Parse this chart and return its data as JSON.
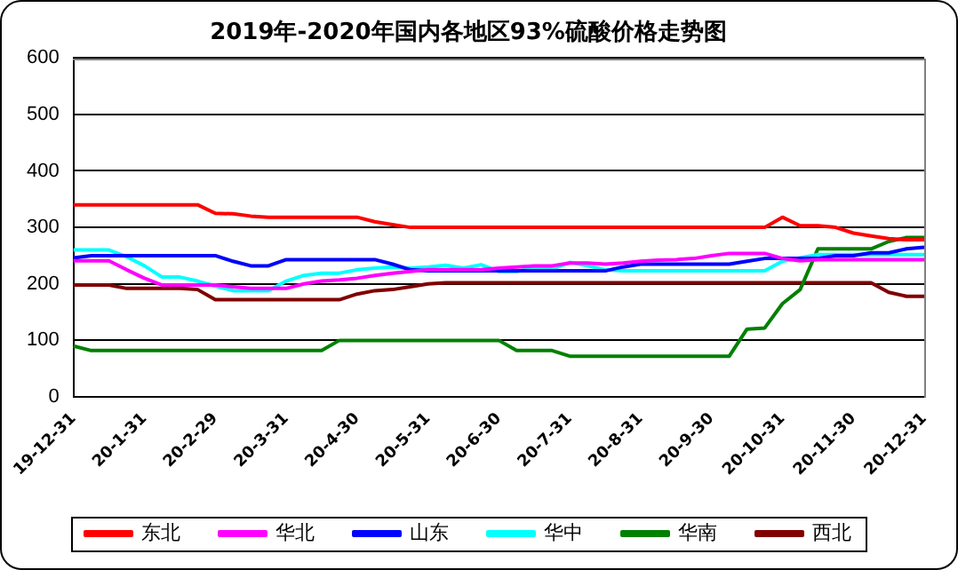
{
  "chart_data": {
    "type": "line",
    "title": "2019年-2020年国内各地区93%硫酸价格走势图",
    "categories": [
      "19-12-31",
      null,
      null,
      null,
      "20-1-31",
      null,
      null,
      null,
      "20-2-29",
      null,
      null,
      null,
      "20-3-31",
      null,
      null,
      null,
      "20-4-30",
      null,
      null,
      null,
      "20-5-31",
      null,
      null,
      null,
      "20-6-30",
      null,
      null,
      null,
      "20-7-31",
      null,
      null,
      null,
      "20-8-31",
      null,
      null,
      null,
      "20-9-30",
      null,
      null,
      null,
      "20-10-31",
      null,
      null,
      null,
      "20-11-30",
      null,
      null,
      null,
      "20-12-31"
    ],
    "series": [
      {
        "name": "东北",
        "color": "#ff0000",
        "values": [
          340,
          340,
          340,
          340,
          340,
          340,
          340,
          340,
          325,
          324,
          320,
          318,
          318,
          318,
          318,
          318,
          318,
          310,
          305,
          300,
          300,
          300,
          300,
          300,
          300,
          300,
          300,
          300,
          300,
          300,
          300,
          300,
          300,
          300,
          300,
          300,
          300,
          300,
          300,
          300,
          318,
          303,
          303,
          300,
          290,
          285,
          280,
          278,
          278
        ]
      },
      {
        "name": "华北",
        "color": "#ff00ff",
        "values": [
          241,
          241,
          241,
          225,
          210,
          198,
          198,
          198,
          198,
          195,
          192,
          192,
          192,
          200,
          205,
          207,
          210,
          215,
          219,
          222,
          225,
          225,
          225,
          225,
          228,
          230,
          232,
          232,
          237,
          237,
          235,
          237,
          240,
          242,
          243,
          245,
          250,
          254,
          254,
          254,
          245,
          241,
          243,
          243,
          243,
          243,
          243,
          243,
          243
        ]
      },
      {
        "name": "山东",
        "color": "#0000ff",
        "values": [
          246,
          250,
          250,
          250,
          250,
          250,
          250,
          250,
          250,
          240,
          232,
          232,
          243,
          243,
          243,
          243,
          243,
          243,
          235,
          225,
          223,
          223,
          223,
          223,
          223,
          223,
          223,
          223,
          223,
          223,
          223,
          230,
          235,
          235,
          235,
          235,
          235,
          235,
          240,
          245,
          245,
          245,
          245,
          250,
          250,
          255,
          255,
          262,
          265
        ]
      },
      {
        "name": "华中",
        "color": "#00ffff",
        "values": [
          260,
          260,
          260,
          248,
          232,
          212,
          212,
          205,
          196,
          188,
          188,
          188,
          205,
          215,
          219,
          219,
          225,
          228,
          230,
          228,
          230,
          233,
          228,
          234,
          222,
          222,
          228,
          226,
          238,
          232,
          225,
          223,
          223,
          223,
          223,
          223,
          223,
          223,
          223,
          223,
          240,
          246,
          252,
          252,
          252,
          252,
          252,
          252,
          252
        ]
      },
      {
        "name": "华南",
        "color": "#008000",
        "values": [
          90,
          82,
          82,
          82,
          82,
          82,
          82,
          82,
          82,
          82,
          82,
          82,
          82,
          82,
          82,
          100,
          100,
          100,
          100,
          100,
          100,
          100,
          100,
          100,
          100,
          82,
          82,
          82,
          72,
          72,
          72,
          72,
          72,
          72,
          72,
          72,
          72,
          72,
          120,
          122,
          165,
          190,
          262,
          262,
          262,
          262,
          275,
          282,
          282
        ]
      },
      {
        "name": "西北",
        "color": "#800000",
        "values": [
          198,
          198,
          198,
          192,
          192,
          192,
          192,
          190,
          172,
          172,
          172,
          172,
          172,
          172,
          172,
          172,
          182,
          188,
          190,
          195,
          200,
          202,
          202,
          202,
          202,
          202,
          202,
          202,
          202,
          202,
          202,
          202,
          202,
          202,
          202,
          202,
          202,
          202,
          202,
          202,
          202,
          202,
          202,
          202,
          202,
          202,
          185,
          178,
          178
        ]
      }
    ],
    "ylim": [
      0,
      600
    ],
    "yticks": [
      0,
      100,
      200,
      300,
      400,
      500,
      600
    ],
    "grid": "y",
    "legend": "bottom",
    "marker": "none",
    "line_style": "solid"
  }
}
